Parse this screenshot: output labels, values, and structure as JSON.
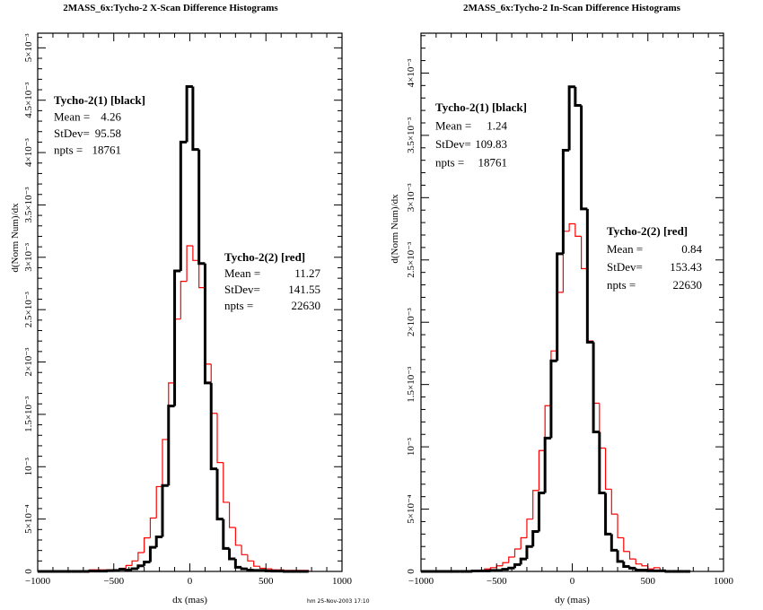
{
  "footer": "hm 25-Nov-2003 17:10",
  "colors": {
    "black_series": "#000000",
    "red_series": "#ff0000"
  },
  "chart_data": [
    {
      "type": "histogram",
      "title": "2MASS_6x:Tycho-2 X-Scan Difference Histograms",
      "xlabel": "dx (mas)",
      "ylabel": "d(Norm Num)/dx",
      "xlim": [
        -1000,
        1000
      ],
      "ylim_e3": [
        0,
        5.14
      ],
      "value_unit": 0.001,
      "bin_width": 40,
      "bin_centers_start": -760,
      "x_ticks": [
        {
          "v": -1000,
          "label": "-1000"
        },
        {
          "v": -500,
          "label": "-500"
        },
        {
          "v": 0,
          "label": "0"
        },
        {
          "v": 500,
          "label": "500"
        },
        {
          "v": 1000,
          "label": "1000"
        }
      ],
      "y_ticks": [
        {
          "v": 0,
          "label": "0"
        },
        {
          "v": 0.5,
          "label": "5×10⁻⁴"
        },
        {
          "v": 1,
          "label": "10⁻³"
        },
        {
          "v": 1.5,
          "label": "1.5×10⁻³"
        },
        {
          "v": 2,
          "label": "2×10⁻³"
        },
        {
          "v": 2.5,
          "label": "2.5×10⁻³"
        },
        {
          "v": 3,
          "label": "3×10⁻³"
        },
        {
          "v": 3.5,
          "label": "3.5×10⁻³"
        },
        {
          "v": 4,
          "label": "4×10⁻³"
        },
        {
          "v": 4.5,
          "label": "4.5×10⁻³"
        },
        {
          "v": 5,
          "label": "5×10⁻³"
        }
      ],
      "series": [
        {
          "name": "Tycho-2(1) [black]",
          "color": "#000000",
          "stats": [
            {
              "label": "Mean =",
              "value": "4.26"
            },
            {
              "label": "StDev=",
              "value": "95.58"
            },
            {
              "label": "npts =",
              "value": "18761"
            }
          ],
          "values": [
            0,
            0,
            0,
            0.003,
            0.003,
            0.003,
            0.008,
            0.01,
            0.02,
            0.013,
            0.026,
            0.054,
            0.09,
            0.23,
            0.33,
            0.82,
            1.58,
            2.87,
            4.1,
            4.63,
            4.03,
            2.94,
            1.8,
            0.98,
            0.5,
            0.22,
            0.12,
            0.04,
            0.025,
            0.013,
            0.01,
            0.01,
            0.005,
            0.003,
            0.003,
            0,
            0,
            0,
            0
          ]
        },
        {
          "name": "Tycho-2(2) [red]",
          "color": "#ff0000",
          "stats": [
            {
              "label": "Mean =",
              "value": "11.27"
            },
            {
              "label": "StDev=",
              "value": "141.55"
            },
            {
              "label": "npts =",
              "value": "22630"
            }
          ],
          "values": [
            0.005,
            0.005,
            0.005,
            0.015,
            0.015,
            0.015,
            0.015,
            0.015,
            0.03,
            0.057,
            0.1,
            0.18,
            0.32,
            0.51,
            0.81,
            1.26,
            1.8,
            2.41,
            2.77,
            3.11,
            2.97,
            2.71,
            1.98,
            1.51,
            1.04,
            0.66,
            0.42,
            0.25,
            0.16,
            0.1,
            0.05,
            0.03,
            0.025,
            0.015,
            0.015,
            0.01,
            0.01,
            0.01,
            0.01
          ]
        }
      ]
    },
    {
      "type": "histogram",
      "title": "2MASS_6x:Tycho-2 In-Scan Difference Histograms",
      "xlabel": "dy (mas)",
      "ylabel": "d(Norm Num)/dx",
      "xlim": [
        -1000,
        1000
      ],
      "ylim_e3": [
        0,
        4.32
      ],
      "value_unit": 0.001,
      "bin_width": 40,
      "bin_centers_start": -760,
      "x_ticks": [
        {
          "v": -1000,
          "label": "-1000"
        },
        {
          "v": -500,
          "label": "-500"
        },
        {
          "v": 0,
          "label": "0"
        },
        {
          "v": 500,
          "label": "500"
        },
        {
          "v": 1000,
          "label": "1000"
        }
      ],
      "y_ticks": [
        {
          "v": 0,
          "label": "0"
        },
        {
          "v": 0.5,
          "label": "5×10⁻⁴"
        },
        {
          "v": 1,
          "label": "10⁻³"
        },
        {
          "v": 1.5,
          "label": "1.5×10⁻³"
        },
        {
          "v": 2,
          "label": "2×10⁻³"
        },
        {
          "v": 2.5,
          "label": "2.5×10⁻³"
        },
        {
          "v": 3,
          "label": "3×10⁻³"
        },
        {
          "v": 3.5,
          "label": "3.5×10⁻³"
        },
        {
          "v": 4,
          "label": "4×10⁻³"
        }
      ],
      "series": [
        {
          "name": "Tycho-2(1) [black]",
          "color": "#000000",
          "stats": [
            {
              "label": "Mean =",
              "value": "1.24"
            },
            {
              "label": "StDev=",
              "value": "109.83"
            },
            {
              "label": "npts =",
              "value": "18761"
            }
          ],
          "values": [
            0,
            0,
            0,
            0.004,
            0.004,
            0.004,
            0.008,
            0.008,
            0.017,
            0.027,
            0.055,
            0.1,
            0.2,
            0.32,
            0.63,
            1.07,
            1.69,
            2.55,
            3.38,
            3.89,
            3.74,
            2.91,
            1.84,
            1.12,
            0.63,
            0.3,
            0.17,
            0.08,
            0.04,
            0.026,
            0.01,
            0.01,
            0.005,
            0.005,
            0.005,
            0,
            0,
            0,
            0
          ]
        },
        {
          "name": "Tycho-2(2) [red]",
          "color": "#ff0000",
          "stats": [
            {
              "label": "Mean =",
              "value": "0.84"
            },
            {
              "label": "StDev=",
              "value": "153.43"
            },
            {
              "label": "npts =",
              "value": "22630"
            }
          ],
          "values": [
            0.005,
            0.005,
            0.005,
            0.01,
            0.01,
            0.02,
            0.03,
            0.045,
            0.07,
            0.115,
            0.18,
            0.27,
            0.42,
            0.65,
            0.97,
            1.33,
            1.77,
            2.24,
            2.73,
            2.79,
            2.69,
            2.43,
            1.85,
            1.35,
            0.99,
            0.66,
            0.46,
            0.27,
            0.16,
            0.1,
            0.06,
            0.045,
            0.02,
            0.03,
            0.005,
            0.005,
            0.005,
            0.005,
            0.005
          ]
        }
      ]
    }
  ]
}
